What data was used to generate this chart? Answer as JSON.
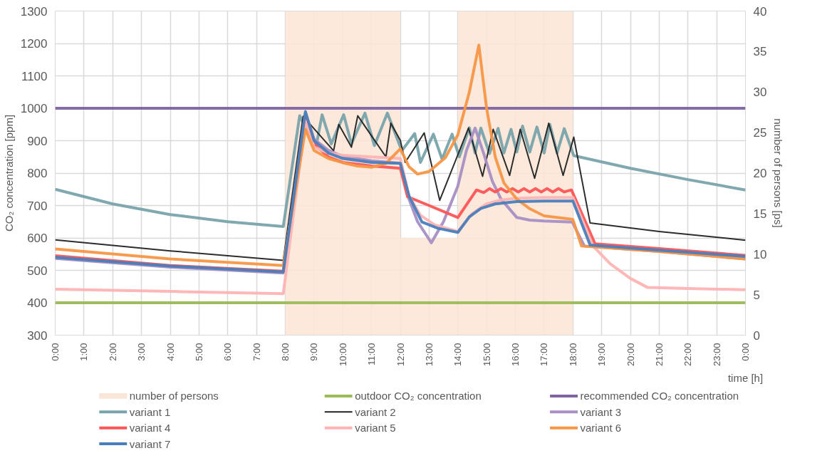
{
  "chart_data": {
    "type": "line",
    "xlabel": "time [h]",
    "ylabel": "CO₂ concentration [ppm]",
    "y2label": "number of persons [ps]",
    "xlim": [
      0,
      24
    ],
    "xticks": [
      {
        "value": 0,
        "label": "0:00"
      },
      {
        "value": 1,
        "label": "1:00"
      },
      {
        "value": 2,
        "label": "2:00"
      },
      {
        "value": 3,
        "label": "3:00"
      },
      {
        "value": 4,
        "label": "4:00"
      },
      {
        "value": 5,
        "label": "5:00"
      },
      {
        "value": 6,
        "label": "6:00"
      },
      {
        "value": 7,
        "label": "7:00"
      },
      {
        "value": 8,
        "label": "8:00"
      },
      {
        "value": 9,
        "label": "9:00"
      },
      {
        "value": 10,
        "label": "10:00"
      },
      {
        "value": 11,
        "label": "11:00"
      },
      {
        "value": 12,
        "label": "12:00"
      },
      {
        "value": 13,
        "label": "13:00"
      },
      {
        "value": 14,
        "label": "14:00"
      },
      {
        "value": 15,
        "label": "15:00"
      },
      {
        "value": 16,
        "label": "16:00"
      },
      {
        "value": 17,
        "label": "17:00"
      },
      {
        "value": 18,
        "label": "18:00"
      },
      {
        "value": 19,
        "label": "19:00"
      },
      {
        "value": 20,
        "label": "20:00"
      },
      {
        "value": 21,
        "label": "21:00"
      },
      {
        "value": 22,
        "label": "22:00"
      },
      {
        "value": 23,
        "label": "23:00"
      },
      {
        "value": 24,
        "label": "0:00"
      }
    ],
    "ylim": [
      300,
      1300
    ],
    "yticks": [
      300,
      400,
      500,
      600,
      700,
      800,
      900,
      1000,
      1100,
      1200,
      1300
    ],
    "y2lim": [
      0,
      40
    ],
    "y2ticks": [
      0,
      5,
      10,
      15,
      20,
      25,
      30,
      35,
      40
    ],
    "grid": true,
    "legend": "bottom",
    "series": [
      {
        "name": "number of persons",
        "type": "area",
        "axis": "y2",
        "color": "#fbe5d6",
        "x": [
          0,
          8,
          8,
          12,
          12,
          14,
          14,
          18,
          18,
          24
        ],
        "values": [
          0,
          0,
          40,
          40,
          12,
          12,
          40,
          40,
          0,
          0
        ]
      },
      {
        "name": "outdoor CO₂ concentration",
        "color": "#9bbb59",
        "x": [
          0,
          24
        ],
        "values": [
          400,
          400
        ]
      },
      {
        "name": "recommended CO₂ concentration",
        "color": "#8064a2",
        "x": [
          0,
          24
        ],
        "values": [
          1000,
          1000
        ]
      },
      {
        "name": "variant 1",
        "color": "#79a3ab",
        "x": [
          0,
          2,
          4,
          6,
          7.93,
          8.5,
          9.07,
          9.28,
          9.6,
          10.03,
          10.3,
          10.77,
          11.1,
          11.55,
          12.05,
          12.5,
          12.7,
          13.15,
          13.45,
          13.8,
          14.05,
          14.4,
          14.6,
          14.8,
          15.1,
          15.4,
          15.6,
          15.85,
          16.05,
          16.25,
          16.5,
          16.75,
          17.0,
          17.2,
          17.45,
          17.7,
          18.03,
          20,
          22,
          24
        ],
        "values": [
          750,
          705,
          672,
          650,
          635,
          977,
          882,
          980,
          890,
          980,
          890,
          985,
          885,
          985,
          869,
          922,
          833,
          920,
          843,
          920,
          850,
          940,
          862,
          939,
          860,
          938,
          862,
          935,
          865,
          945,
          865,
          942,
          862,
          950,
          862,
          937,
          854,
          815,
          780,
          748
        ]
      },
      {
        "name": "variant 2",
        "color": "#222222",
        "x": [
          0,
          4,
          7.93,
          8.62,
          9.68,
          9.86,
          10.3,
          10.52,
          11.5,
          11.67,
          12.0,
          12.17,
          12.83,
          13.37,
          14.37,
          14.86,
          15.23,
          15.8,
          16.17,
          16.67,
          17.16,
          17.66,
          18.03,
          18.6,
          21,
          24
        ],
        "values": [
          594,
          560,
          531,
          975,
          869,
          950,
          880,
          977,
          850,
          954,
          901,
          833,
          924,
          716,
          939,
          790,
          935,
          793,
          935,
          784,
          954,
          793,
          911,
          646,
          620,
          593
        ]
      },
      {
        "name": "variant 3",
        "color": "#a78fc4",
        "x": [
          0,
          4,
          7.93,
          8.7,
          9.0,
          9.5,
          10,
          11,
          12.0,
          12.3,
          12.6,
          13.08,
          13.5,
          14.0,
          14.3,
          14.6,
          14.9,
          15.2,
          15.5,
          16.05,
          16.5,
          17,
          17.98,
          18.4,
          21,
          24
        ],
        "values": [
          537,
          510,
          492,
          985,
          905,
          870,
          852,
          838,
          830,
          720,
          650,
          585,
          650,
          760,
          870,
          939,
          860,
          775,
          720,
          663,
          655,
          652,
          649,
          575,
          558,
          535
        ]
      },
      {
        "name": "variant 4",
        "color": "#ff5555",
        "x": [
          0,
          4,
          7.93,
          8.7,
          9.0,
          9.5,
          10,
          11,
          12.0,
          12.25,
          13,
          14.0,
          14.65,
          14.9,
          15.1,
          15.3,
          15.5,
          15.7,
          15.9,
          16.1,
          16.3,
          16.5,
          16.7,
          16.9,
          17.1,
          17.3,
          17.5,
          17.7,
          17.95,
          18.77,
          21,
          24
        ],
        "values": [
          545,
          515,
          497,
          970,
          890,
          850,
          833,
          822,
          815,
          727,
          700,
          663,
          748,
          740,
          752,
          742,
          752,
          742,
          752,
          742,
          752,
          742,
          752,
          742,
          752,
          742,
          752,
          742,
          748,
          582,
          567,
          546
        ]
      },
      {
        "name": "variant 5",
        "color": "#ffb3b3",
        "x": [
          0,
          4,
          7.93,
          8.7,
          9.0,
          9.5,
          10,
          11,
          12.0,
          12.3,
          12.7,
          13.2,
          14.0,
          14.5,
          15,
          15.5,
          16,
          17,
          18.0,
          18.7,
          19.3,
          20,
          20.6,
          22,
          24
        ],
        "values": [
          442,
          435,
          428,
          960,
          880,
          862,
          855,
          850,
          845,
          730,
          670,
          640,
          620,
          675,
          705,
          717,
          722,
          725,
          725,
          575,
          520,
          475,
          447,
          444,
          440
        ]
      },
      {
        "name": "variant 6",
        "color": "#f79646",
        "x": [
          0,
          4,
          7.93,
          8.7,
          9.0,
          9.5,
          10,
          10.5,
          11,
          11.5,
          12.0,
          12.3,
          12.6,
          13.0,
          13.57,
          14.0,
          14.4,
          14.73,
          15.0,
          15.3,
          15.6,
          16.05,
          16.5,
          17,
          18.0,
          18.3,
          21,
          24
        ],
        "values": [
          566,
          535,
          515,
          935,
          870,
          845,
          832,
          822,
          818,
          830,
          875,
          820,
          797,
          805,
          848,
          918,
          1050,
          1195,
          1000,
          850,
          770,
          720,
          690,
          668,
          657,
          575,
          558,
          535
        ]
      },
      {
        "name": "variant 7",
        "color": "#4a7ebb",
        "x": [
          0,
          4,
          7.93,
          8.7,
          9.0,
          9.5,
          10,
          11,
          12.0,
          12.3,
          12.75,
          13.3,
          14.0,
          14.4,
          14.8,
          15.3,
          16.05,
          17,
          18.0,
          18.6,
          21,
          24
        ],
        "values": [
          540,
          513,
          495,
          990,
          900,
          862,
          845,
          833,
          830,
          730,
          649,
          630,
          617,
          665,
          691,
          705,
          712,
          714,
          714,
          578,
          562,
          543
        ]
      }
    ]
  }
}
